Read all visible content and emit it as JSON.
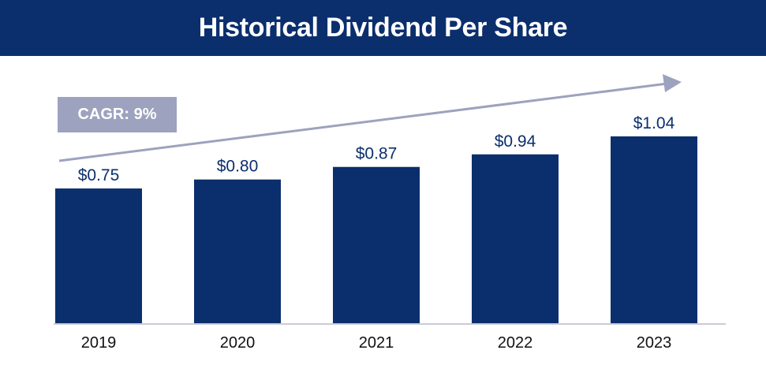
{
  "header": {
    "title": "Historical Dividend Per Share"
  },
  "badge": {
    "label": "CAGR: 9%"
  },
  "colors": {
    "header_bg": "#0b2f6d",
    "bar": "#0b2f6d",
    "arrow": "#9da2be",
    "badge_bg": "#9da2be",
    "axis": "#c8ccd6",
    "label_text": "#0b2f6d"
  },
  "chart_data": {
    "type": "bar",
    "title": "Historical Dividend Per Share",
    "categories": [
      "2019",
      "2020",
      "2021",
      "2022",
      "2023"
    ],
    "values": [
      0.75,
      0.8,
      0.87,
      0.94,
      1.04
    ],
    "value_labels": [
      "$0.75",
      "$0.80",
      "$0.87",
      "$0.94",
      "$1.04"
    ],
    "xlabel": "",
    "ylabel": "",
    "ylim": [
      0,
      1.04
    ],
    "grid": false,
    "annotations": [
      "CAGR: 9%"
    ]
  }
}
